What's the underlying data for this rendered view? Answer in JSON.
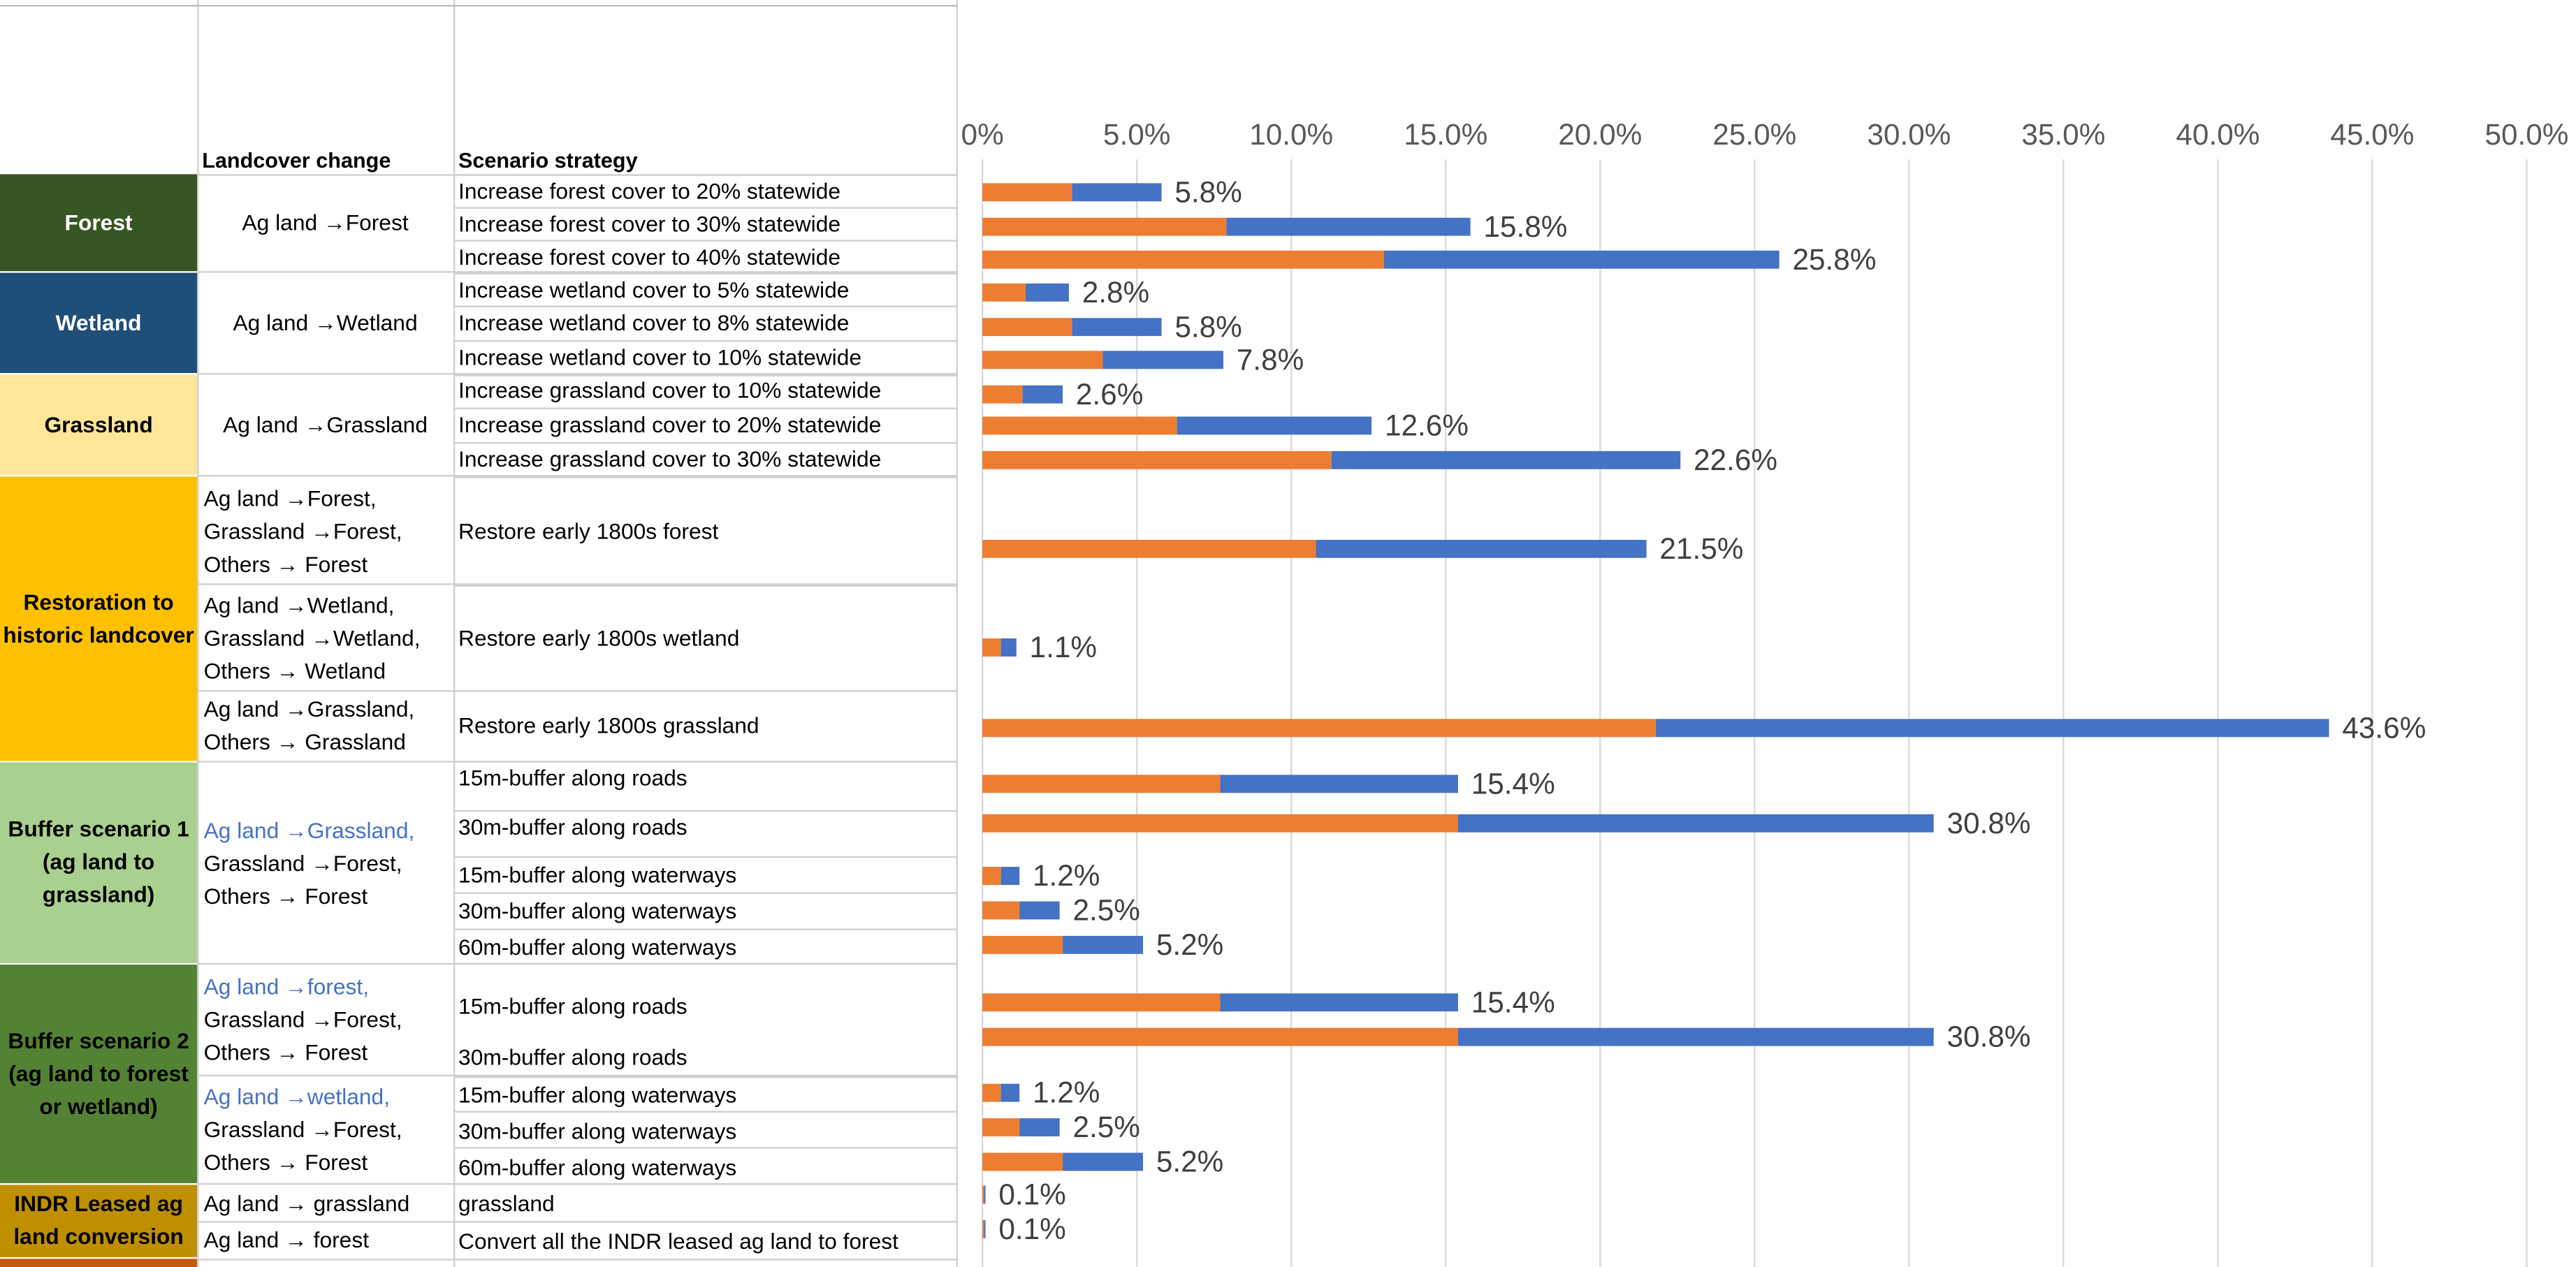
{
  "table": {
    "headers": {
      "landcover_change": "Landcover change",
      "scenario_strategy": "Scenario strategy"
    },
    "categories": [
      {
        "label": "Forest",
        "bg": "#375623",
        "fg": "#ffffff"
      },
      {
        "label": "Wetland",
        "bg": "#1f4e79",
        "fg": "#ffffff"
      },
      {
        "label": "Grassland",
        "bg": "#ffe699",
        "fg": "#000000"
      },
      {
        "label": "Restoration to historic landcover",
        "bg": "#ffc000",
        "fg": "#000000"
      },
      {
        "label": "Buffer scenario 1 (ag land to grassland)",
        "bg": "#a9d08e",
        "fg": "#000000"
      },
      {
        "label": "Buffer scenario 2 (ag land to forest or wetland)",
        "bg": "#548235",
        "fg": "#000000"
      },
      {
        "label": "INDR Leased ag land conversion",
        "bg": "#bf8f00",
        "fg": "#000000"
      }
    ],
    "changes": [
      [
        "Ag land →Forest"
      ],
      [
        "Ag land →Wetland"
      ],
      [
        "Ag land →Grassland"
      ],
      [
        "Ag land →Forest,",
        "Grassland →Forest,",
        "Others → Forest"
      ],
      [
        "Ag land →Wetland,",
        "Grassland →Wetland,",
        "Others → Wetland"
      ],
      [
        "Ag land →Grassland,",
        "Others → Grassland"
      ],
      [
        "Ag land →Grassland,",
        "Grassland →Forest,",
        "Others → Forest"
      ],
      [
        "Ag land →forest,",
        "Grassland →Forest,",
        "Others → Forest"
      ],
      [
        "Ag land →wetland,",
        "Grassland →Forest,",
        "Others → Forest"
      ],
      [
        "Ag land → grassland"
      ],
      [
        "Ag land → forest"
      ]
    ],
    "strategies": [
      "Increase forest cover to 20% statewide",
      "Increase forest cover to 30% statewide",
      "Increase forest cover to 40% statewide",
      "Increase wetland cover to 5% statewide",
      "Increase wetland cover to 8% statewide",
      "Increase wetland cover to 10% statewide",
      "Increase grassland cover to 10% statewide",
      "Increase grassland cover to 20% statewide",
      "Increase grassland cover to 30% statewide",
      "Restore early 1800s forest",
      "Restore early 1800s wetland",
      "Restore early 1800s grassland",
      "15m-buffer along roads",
      "30m-buffer along roads",
      "15m-buffer along waterways",
      "30m-buffer along waterways",
      "60m-buffer along waterways",
      "15m-buffer along roads",
      "30m-buffer along roads",
      "15m-buffer along waterways",
      "30m-buffer along waterways",
      "60m-buffer along waterways",
      "grassland",
      "Convert all the INDR leased ag land to forest"
    ]
  },
  "chart_data": {
    "type": "bar",
    "orientation": "horizontal",
    "stacked": true,
    "xlim": [
      0,
      50
    ],
    "tick_labels": [
      "0%",
      "5.0%",
      "10.0%",
      "15.0%",
      "20.0%",
      "25.0%",
      "30.0%",
      "35.0%",
      "40.0%",
      "45.0%",
      "50.0%"
    ],
    "grid": true,
    "colors": {
      "series1": "#ed7d31",
      "series2": "#4472c4"
    },
    "totals": [
      5.8,
      15.8,
      25.8,
      2.8,
      5.8,
      7.8,
      2.6,
      12.6,
      22.6,
      21.5,
      1.1,
      43.6,
      15.4,
      30.8,
      1.2,
      2.5,
      5.2,
      15.4,
      30.8,
      1.2,
      2.5,
      5.2,
      0.1,
      0.1
    ],
    "data_labels": [
      "5.8%",
      "15.8%",
      "25.8%",
      "2.8%",
      "5.8%",
      "7.8%",
      "2.6%",
      "12.6%",
      "22.6%",
      "21.5%",
      "1.1%",
      "43.6%",
      "15.4%",
      "30.8%",
      "1.2%",
      "2.5%",
      "5.2%",
      "15.4%",
      "30.8%",
      "1.2%",
      "2.5%",
      "5.2%",
      "0.1%",
      "0.1%"
    ],
    "series": [
      {
        "values": [
          2.9,
          7.9,
          13.0,
          1.4,
          2.9,
          3.9,
          1.3,
          6.3,
          11.3,
          10.8,
          0.6,
          21.8,
          7.7,
          15.4,
          0.6,
          1.2,
          2.6,
          7.7,
          15.4,
          0.6,
          1.2,
          2.6,
          0.05,
          0.05
        ]
      },
      {
        "values": [
          2.9,
          7.9,
          12.8,
          1.4,
          2.9,
          3.9,
          1.3,
          6.3,
          11.3,
          10.7,
          0.5,
          21.8,
          7.7,
          15.4,
          0.6,
          1.3,
          2.6,
          7.7,
          15.4,
          0.6,
          1.3,
          2.6,
          0.05,
          0.05
        ]
      }
    ]
  }
}
